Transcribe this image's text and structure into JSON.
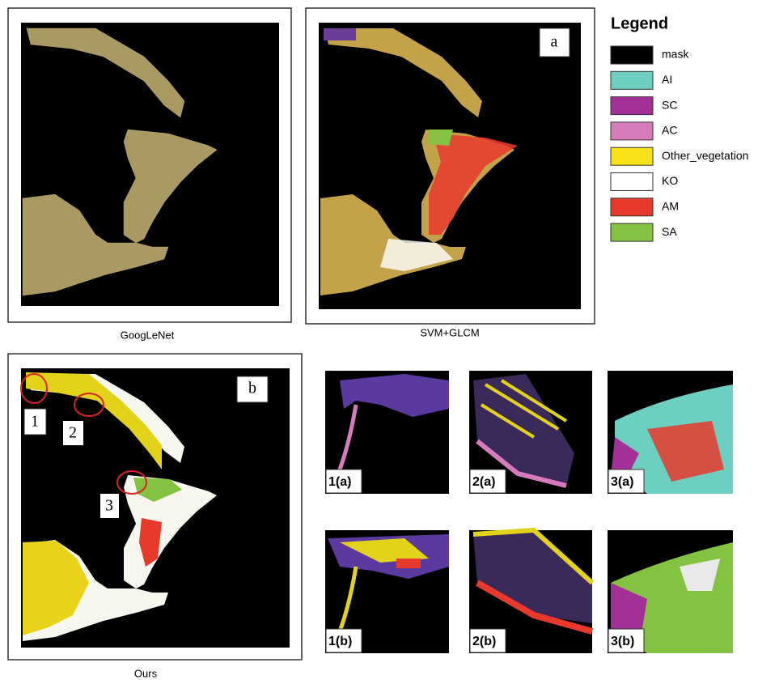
{
  "panels": [
    {
      "caption": "GoogLeNet"
    },
    {
      "caption": "SVM+GLCM",
      "label": "a"
    },
    {
      "caption": "Ours",
      "label": "b",
      "markers": [
        "1",
        "2",
        "3"
      ]
    }
  ],
  "legend": {
    "title": "Legend",
    "items": [
      {
        "label": "mask",
        "color": "#000000"
      },
      {
        "label": "AI",
        "color": "#6ccfc0"
      },
      {
        "label": "SC",
        "color": "#a23097"
      },
      {
        "label": "AC",
        "color": "#d77bbd"
      },
      {
        "label": "Other_vegetation",
        "color": "#f7e21a"
      },
      {
        "label": "KO",
        "color": "#ffffff"
      },
      {
        "label": "AM",
        "color": "#e8392c"
      },
      {
        "label": "SA",
        "color": "#84c341"
      }
    ]
  },
  "insets": [
    "1(a)",
    "2(a)",
    "3(a)",
    "1(b)",
    "2(b)",
    "3(b)"
  ]
}
